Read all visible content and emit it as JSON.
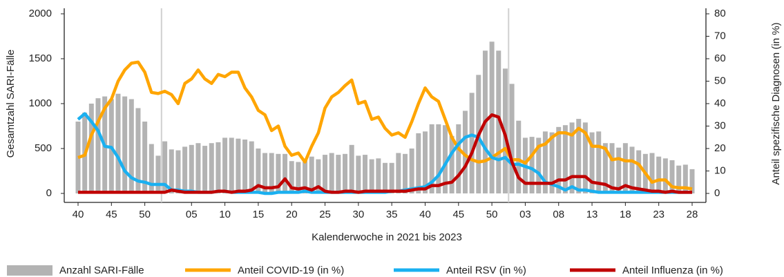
{
  "chart_data": {
    "type": "combo",
    "xlabel": "Kalenderwoche in 2021 bis 2023",
    "ylabel": "Gesamtzahl SARI-Fälle",
    "y2label": "Anteil spezifische Diagnosen (in %)",
    "categories": [
      "40",
      null,
      null,
      null,
      null,
      "45",
      null,
      null,
      null,
      null,
      "50",
      null,
      null,
      null,
      null,
      null,
      null,
      "05",
      null,
      null,
      null,
      null,
      "10",
      null,
      null,
      null,
      null,
      "15",
      null,
      null,
      null,
      null,
      "20",
      null,
      null,
      null,
      null,
      "25",
      null,
      null,
      null,
      null,
      "30",
      null,
      null,
      null,
      null,
      "35",
      null,
      null,
      null,
      null,
      "40",
      null,
      null,
      null,
      null,
      "45",
      null,
      null,
      null,
      null,
      "50",
      null,
      null,
      null,
      null,
      "03",
      null,
      null,
      null,
      null,
      "08",
      null,
      null,
      null,
      null,
      "13",
      null,
      null,
      null,
      null,
      "18",
      null,
      null,
      null,
      null,
      "23",
      null,
      null,
      null,
      null,
      "28"
    ],
    "ylim": [
      0,
      2000
    ],
    "yticks": [
      0,
      500,
      1000,
      1500,
      2000
    ],
    "y2lim": [
      0,
      80
    ],
    "y2ticks": [
      0,
      10,
      20,
      30,
      40,
      50,
      60,
      70,
      80
    ],
    "series": [
      {
        "name": "Anzahl SARI-Fälle",
        "type": "bar",
        "color": "#b3b3b3",
        "values": [
          800,
          900,
          1000,
          1060,
          1080,
          1050,
          1110,
          1080,
          1050,
          950,
          800,
          550,
          420,
          580,
          490,
          480,
          520,
          540,
          560,
          530,
          560,
          570,
          620,
          620,
          610,
          600,
          580,
          500,
          450,
          450,
          440,
          440,
          360,
          350,
          370,
          410,
          380,
          430,
          450,
          430,
          440,
          540,
          420,
          430,
          380,
          390,
          340,
          340,
          450,
          440,
          500,
          670,
          690,
          770,
          770,
          760,
          640,
          770,
          920,
          1120,
          1320,
          1590,
          1690,
          1590,
          1390,
          1220,
          810,
          620,
          630,
          620,
          690,
          680,
          740,
          760,
          790,
          830,
          790,
          680,
          690,
          560,
          560,
          510,
          560,
          520,
          480,
          440,
          450,
          410,
          390,
          370,
          310,
          320,
          270
        ]
      },
      {
        "name": "Anteil COVID-19 (in %)",
        "type": "line",
        "axis": "y2",
        "color": "#ffa500",
        "values": [
          16,
          17,
          26,
          32,
          38,
          42,
          50,
          55,
          58,
          58.5,
          54,
          45,
          44.5,
          45.5,
          44,
          40,
          49,
          51,
          55,
          51,
          49,
          53,
          52,
          54,
          54,
          47,
          43,
          37,
          35,
          28,
          30,
          21,
          17,
          18,
          14,
          21,
          27,
          38,
          43,
          45,
          48,
          50.5,
          40,
          41,
          33,
          34,
          29,
          26,
          27,
          25,
          32,
          40,
          47,
          43,
          41,
          33,
          25,
          20,
          17,
          15,
          14,
          14.5,
          16,
          18,
          20,
          15,
          15,
          13.5,
          17,
          21,
          22,
          25,
          27,
          27,
          26,
          29,
          27,
          21,
          21,
          20,
          15,
          15.5,
          14.5,
          14.5,
          13,
          9,
          5,
          6,
          6,
          3,
          2.5,
          2.5,
          2
        ]
      },
      {
        "name": "Anteil RSV (in %)",
        "type": "line",
        "axis": "y2",
        "color": "#1ab0f0",
        "values": [
          33,
          35.5,
          32,
          28,
          21,
          20.5,
          16,
          10,
          7,
          5.5,
          5,
          4,
          4,
          4,
          1.5,
          1.5,
          1,
          1,
          0.5,
          0.5,
          0.5,
          1,
          1,
          0.5,
          0.5,
          0.5,
          0.5,
          0.5,
          0,
          0,
          0.5,
          0.5,
          0.5,
          0.5,
          1,
          0.5,
          0.5,
          0.5,
          0.5,
          0.5,
          0.5,
          0.5,
          0.5,
          0.5,
          0.5,
          0.5,
          0.5,
          1,
          1,
          1.5,
          2,
          2.5,
          3,
          5,
          8,
          13,
          18,
          22,
          25,
          26,
          25,
          20,
          16,
          15,
          16,
          13,
          13,
          12,
          11,
          9,
          5,
          4,
          3,
          1.5,
          3,
          1.5,
          1.5,
          1,
          0.5,
          0.5,
          0.5,
          0.5,
          0.5,
          0.5,
          0.5,
          0.5,
          0.5,
          0.5,
          0.5,
          0.5,
          0.5,
          0.5,
          0.5
        ]
      },
      {
        "name": "Anteil Influenza (in %)",
        "type": "line",
        "axis": "y2",
        "color": "#c00000",
        "values": [
          0.5,
          0.5,
          0.5,
          0.5,
          0.5,
          0.5,
          0.5,
          0.5,
          0.5,
          0.5,
          0.5,
          0.5,
          0.5,
          0.5,
          1.5,
          1,
          0.5,
          0.5,
          0.5,
          0.5,
          0.5,
          1,
          1,
          0.5,
          1,
          1,
          1.5,
          3.5,
          2.5,
          2.5,
          3,
          6.5,
          2.5,
          2,
          2.5,
          1.5,
          3,
          1,
          0.5,
          0.5,
          1,
          1,
          0.5,
          1,
          1,
          1,
          1,
          1,
          1,
          1,
          1.5,
          2,
          2,
          3.5,
          3.5,
          4.5,
          5,
          8,
          12,
          18,
          26,
          32,
          35,
          34,
          26,
          14,
          7,
          4.5,
          4.5,
          4.5,
          4.5,
          4.5,
          6,
          6,
          7.5,
          7.5,
          7.5,
          5,
          4.5,
          4,
          2.5,
          2,
          3.5,
          2.5,
          2,
          1.5,
          1,
          1,
          0.5,
          1,
          0.5,
          0.5,
          0.5
        ]
      }
    ]
  }
}
